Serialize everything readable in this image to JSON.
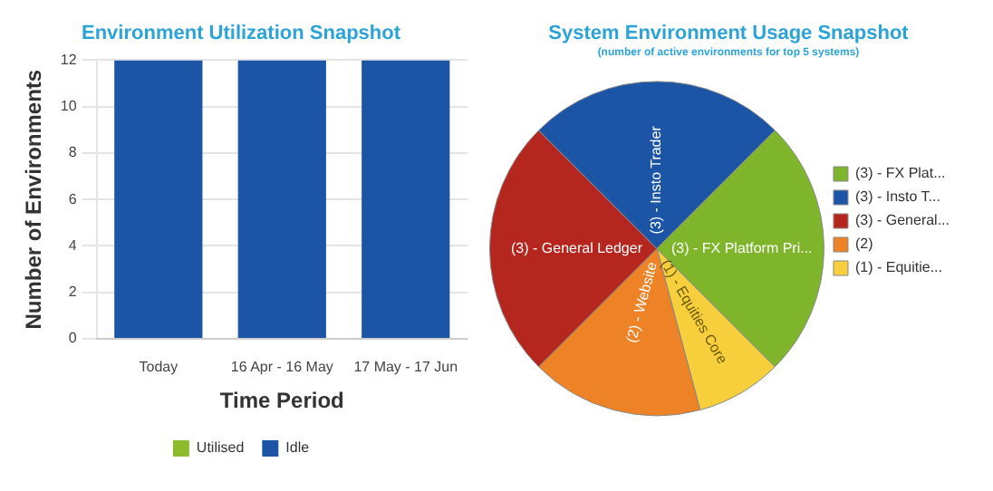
{
  "chart_data": [
    {
      "type": "bar",
      "title": "Environment Utilization Snapshot",
      "xlabel": "Time Period",
      "ylabel": "Number of Environments",
      "categories": [
        "Today",
        "16 Apr - 16 May",
        "17 May - 17 Jun"
      ],
      "stacked": true,
      "series": [
        {
          "name": "Utilised",
          "color": "#8cbb2c",
          "values": [
            0,
            0,
            0
          ]
        },
        {
          "name": "Idle",
          "color": "#1d55a6",
          "values": [
            12,
            12,
            12
          ]
        }
      ],
      "ylim": [
        0,
        12
      ],
      "yticks": [
        0,
        2,
        4,
        6,
        8,
        10,
        12
      ],
      "grid": "y",
      "legend": "bottom"
    },
    {
      "type": "pie",
      "title": "System Environment Usage Snapshot",
      "subtitle": "(number of active environments for top 5 systems)",
      "categories": [
        "(3) - FX Plat...",
        "(3) - Insto T...",
        "(3) - General...",
        "(2)",
        "(1) - Equitie..."
      ],
      "values": [
        3,
        3,
        3,
        2,
        1
      ],
      "colors": [
        "#7fb52a",
        "#1d55a6",
        "#b5261e",
        "#ee8227",
        "#f7cf3c"
      ],
      "value_labels": [
        "(3) - FX Platform Pri...",
        "(3) - Insto Trader",
        "(3) - General Ledger",
        "(2) - Website",
        "(1) - Equities Core"
      ],
      "legend": "right"
    }
  ]
}
